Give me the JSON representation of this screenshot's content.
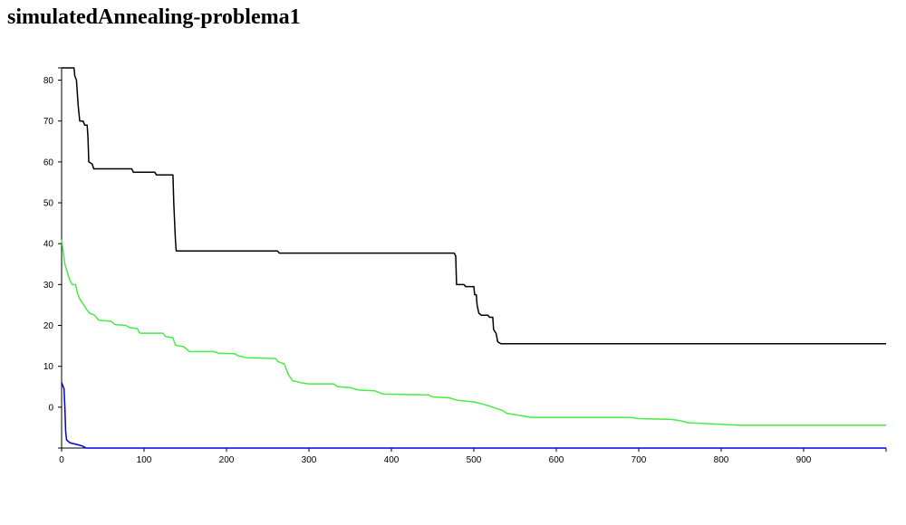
{
  "page": {
    "title": "simulatedAnnealing-problema1"
  },
  "chart_data": {
    "type": "line",
    "title": "simulatedAnnealing-problema1",
    "xlabel": "",
    "ylabel": "",
    "xlim": [
      0,
      1000
    ],
    "ylim": [
      -10,
      83
    ],
    "x_ticks": [
      0,
      100,
      200,
      300,
      400,
      500,
      600,
      700,
      800,
      900
    ],
    "y_ticks": [
      0,
      10,
      20,
      30,
      40,
      50,
      60,
      70,
      80
    ],
    "grid": false,
    "legend": "none",
    "series": [
      {
        "color": "#000000",
        "points": [
          [
            0,
            83
          ],
          [
            15,
            83
          ],
          [
            16,
            81
          ],
          [
            18,
            80
          ],
          [
            20,
            74
          ],
          [
            22,
            70
          ],
          [
            26,
            70
          ],
          [
            28,
            69
          ],
          [
            31,
            69
          ],
          [
            32,
            66
          ],
          [
            33,
            60
          ],
          [
            37,
            59.5
          ],
          [
            39,
            58.3
          ],
          [
            85,
            58.3
          ],
          [
            87,
            57.5
          ],
          [
            113,
            57.5
          ],
          [
            115,
            56.8
          ],
          [
            135,
            56.8
          ],
          [
            136,
            50
          ],
          [
            138,
            41
          ],
          [
            139,
            38.2
          ],
          [
            262,
            38.2
          ],
          [
            264,
            37.7
          ],
          [
            476,
            37.7
          ],
          [
            478,
            37
          ],
          [
            479,
            30
          ],
          [
            488,
            30
          ],
          [
            490,
            29.5
          ],
          [
            500,
            29.5
          ],
          [
            501,
            27.5
          ],
          [
            503,
            27.5
          ],
          [
            504,
            25
          ],
          [
            506,
            23
          ],
          [
            509,
            22.5
          ],
          [
            517,
            22.5
          ],
          [
            519,
            22
          ],
          [
            523,
            22
          ],
          [
            524,
            19
          ],
          [
            527,
            18
          ],
          [
            529,
            16
          ],
          [
            533,
            15.5
          ],
          [
            1000,
            15.5
          ]
        ]
      },
      {
        "color": "#44ee44",
        "points": [
          [
            0,
            41
          ],
          [
            2,
            38
          ],
          [
            4,
            35
          ],
          [
            7,
            33
          ],
          [
            10,
            31
          ],
          [
            13,
            30
          ],
          [
            17,
            30
          ],
          [
            19,
            28
          ],
          [
            22,
            26.5
          ],
          [
            27,
            25
          ],
          [
            30,
            24
          ],
          [
            34,
            23
          ],
          [
            40,
            22.5
          ],
          [
            45,
            21.3
          ],
          [
            60,
            21
          ],
          [
            65,
            20.2
          ],
          [
            78,
            20
          ],
          [
            82,
            19.5
          ],
          [
            92,
            19.2
          ],
          [
            95,
            18.1
          ],
          [
            123,
            18.1
          ],
          [
            126,
            17.3
          ],
          [
            135,
            17
          ],
          [
            138,
            15.2
          ],
          [
            148,
            14.8
          ],
          [
            155,
            13.6
          ],
          [
            185,
            13.6
          ],
          [
            190,
            13.2
          ],
          [
            210,
            13.1
          ],
          [
            215,
            12.5
          ],
          [
            225,
            12.1
          ],
          [
            242,
            12
          ],
          [
            260,
            11.9
          ],
          [
            262,
            11.2
          ],
          [
            270,
            10.6
          ],
          [
            275,
            8
          ],
          [
            280,
            6.5
          ],
          [
            290,
            6
          ],
          [
            300,
            5.7
          ],
          [
            330,
            5.7
          ],
          [
            335,
            5
          ],
          [
            350,
            4.8
          ],
          [
            360,
            4.2
          ],
          [
            380,
            4
          ],
          [
            390,
            3.2
          ],
          [
            445,
            3
          ],
          [
            450,
            2.5
          ],
          [
            470,
            2.3
          ],
          [
            480,
            1.7
          ],
          [
            500,
            1.3
          ],
          [
            510,
            0.8
          ],
          [
            520,
            0.2
          ],
          [
            530,
            -0.5
          ],
          [
            535,
            -0.8
          ],
          [
            540,
            -1.5
          ],
          [
            555,
            -2
          ],
          [
            570,
            -2.5
          ],
          [
            690,
            -2.5
          ],
          [
            700,
            -2.8
          ],
          [
            740,
            -3
          ],
          [
            750,
            -3.3
          ],
          [
            760,
            -3.8
          ],
          [
            780,
            -4
          ],
          [
            800,
            -4.2
          ],
          [
            820,
            -4.4
          ],
          [
            1000,
            -4.4
          ]
        ]
      },
      {
        "color": "#0000dd",
        "points": [
          [
            0,
            6
          ],
          [
            2,
            5
          ],
          [
            3,
            4.5
          ],
          [
            4,
            0
          ],
          [
            5,
            -6
          ],
          [
            6,
            -8
          ],
          [
            10,
            -8.7
          ],
          [
            20,
            -9.2
          ],
          [
            25,
            -9.5
          ],
          [
            30,
            -10
          ],
          [
            1000,
            -10
          ]
        ]
      }
    ]
  }
}
